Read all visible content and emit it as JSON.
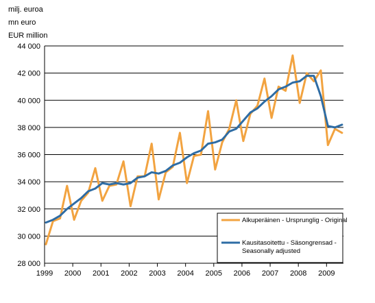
{
  "chart_data": {
    "type": "line",
    "unit_labels": [
      "milj. euroa",
      "mn euro",
      "EUR million"
    ],
    "title": "",
    "xlabel": "",
    "ylabel": "",
    "ylim": [
      28000,
      44000
    ],
    "y_ticks": [
      28000,
      30000,
      32000,
      34000,
      36000,
      38000,
      40000,
      42000,
      44000
    ],
    "y_tick_labels": [
      "28 000",
      "30 000",
      "32 000",
      "34 000",
      "36 000",
      "38 000",
      "40 000",
      "42 000",
      "44 000"
    ],
    "x_tick_labels": [
      "1999",
      "2000",
      "2001",
      "2002",
      "2003",
      "2004",
      "2005",
      "2006",
      "2007",
      "2008",
      "2009"
    ],
    "x_period": "quarterly, 1999Q1–2009Q3",
    "grid": "horizontal",
    "legend_position": "bottom-right",
    "series": [
      {
        "name": "Alkuperäinen - Ursprunglig - Original",
        "color": "#f2a340",
        "values": [
          29400,
          31100,
          31300,
          33700,
          31200,
          32600,
          33200,
          35000,
          32600,
          33700,
          33800,
          35500,
          32200,
          34400,
          34400,
          36800,
          32700,
          34700,
          35100,
          37600,
          33900,
          35900,
          36000,
          39200,
          34900,
          36900,
          37900,
          40000,
          37000,
          39000,
          39600,
          41600,
          38700,
          41000,
          40700,
          43300,
          39800,
          42000,
          41400,
          42200,
          36700,
          37900,
          37600
        ]
      },
      {
        "name": "Kausitasoitettu - Säsongrensad - Seasonally adjusted",
        "color": "#2e6ca4",
        "values": [
          31000,
          31200,
          31500,
          32000,
          32400,
          32800,
          33300,
          33500,
          33900,
          33800,
          33900,
          33800,
          33900,
          34300,
          34400,
          34700,
          34600,
          34800,
          35200,
          35400,
          35800,
          36100,
          36300,
          36800,
          36900,
          37100,
          37700,
          37900,
          38500,
          39100,
          39400,
          39900,
          40300,
          40800,
          41000,
          41300,
          41400,
          41800,
          41800,
          40300,
          38100,
          38000,
          38200
        ]
      }
    ]
  }
}
